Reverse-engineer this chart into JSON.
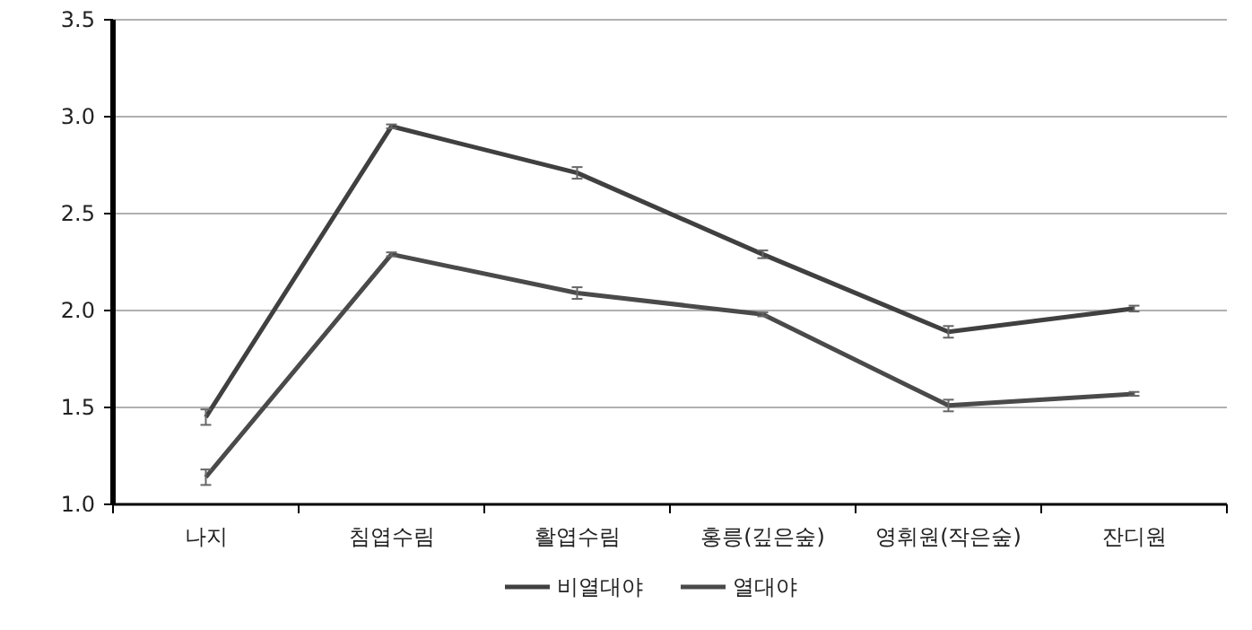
{
  "chart_data": {
    "type": "line",
    "categories": [
      "나지",
      "침엽수림",
      "활엽수림",
      "홍릉(깊은숲)",
      "영휘원(작은숲)",
      "잔디원"
    ],
    "series": [
      {
        "name": "비열대야",
        "color": "#404040",
        "values": [
          1.45,
          2.95,
          2.71,
          2.29,
          1.89,
          2.01
        ],
        "errors": [
          0.04,
          0.01,
          0.03,
          0.02,
          0.03,
          0.015
        ]
      },
      {
        "name": "열대야",
        "color": "#4a4a4a",
        "values": [
          1.14,
          2.29,
          2.09,
          1.98,
          1.51,
          1.57
        ],
        "errors": [
          0.04,
          0.01,
          0.03,
          0.01,
          0.03,
          0.01
        ]
      }
    ],
    "ylim": [
      1.0,
      3.5
    ],
    "yticks": [
      {
        "value": 1.0,
        "label": "1.0"
      },
      {
        "value": 1.5,
        "label": "1.5"
      },
      {
        "value": 2.0,
        "label": "2.0"
      },
      {
        "value": 2.5,
        "label": "2.5"
      },
      {
        "value": 3.0,
        "label": "3.0"
      },
      {
        "value": 3.5,
        "label": "3.5"
      }
    ],
    "grid": "y",
    "legend": "bottom"
  }
}
